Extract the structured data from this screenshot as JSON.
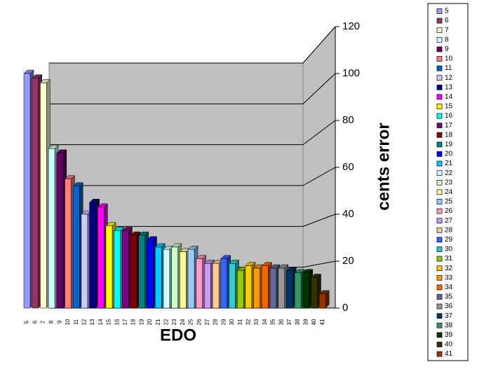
{
  "chart_data": {
    "type": "bar3d",
    "x_label": "EDO",
    "y_label": "cents error",
    "categories": [
      "5",
      "6",
      "7",
      "8",
      "9",
      "10",
      "11",
      "12",
      "13",
      "14",
      "15",
      "16",
      "17",
      "18",
      "19",
      "20",
      "21",
      "22",
      "23",
      "24",
      "25",
      "26",
      "27",
      "28",
      "29",
      "30",
      "31",
      "32",
      "33",
      "34",
      "35",
      "36",
      "37",
      "38",
      "39",
      "40",
      "41"
    ],
    "values": [
      100,
      98,
      96,
      68,
      66,
      55,
      52,
      40,
      45,
      43,
      35,
      33,
      33,
      31,
      31,
      29,
      26,
      25,
      26,
      24,
      25,
      21,
      19,
      19,
      21,
      19,
      16,
      18,
      17,
      18,
      17,
      17,
      16,
      15,
      15,
      13,
      6
    ],
    "colors": [
      "#9999ff",
      "#993366",
      "#ffffcc",
      "#ccffff",
      "#660066",
      "#ff8080",
      "#0066cc",
      "#ccccff",
      "#000080",
      "#ff00ff",
      "#ffff00",
      "#00ffff",
      "#800080",
      "#800000",
      "#008080",
      "#0000ff",
      "#00ccff",
      "#ccffff",
      "#ccffcc",
      "#ffff99",
      "#99ccff",
      "#ff99cc",
      "#cc99ff",
      "#ffcc99",
      "#3366ff",
      "#33cccc",
      "#99cc00",
      "#ffcc00",
      "#ff9900",
      "#ff6600",
      "#666699",
      "#969696",
      "#003366",
      "#339966",
      "#003300",
      "#333300",
      "#993300"
    ],
    "ylim": [
      0,
      120
    ],
    "yticks": [
      0,
      20,
      40,
      60,
      80,
      100,
      120
    ],
    "grid": true,
    "legend": "right"
  }
}
